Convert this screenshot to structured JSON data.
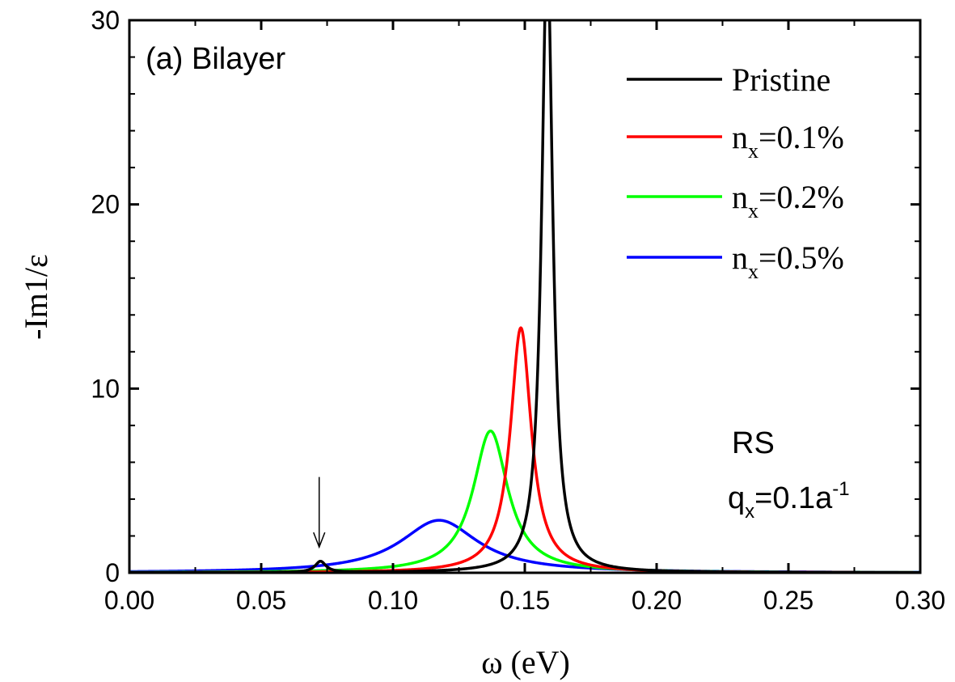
{
  "chart_data": {
    "type": "line",
    "xlabel": "ω (eV)",
    "ylabel": "-Im1/ε",
    "xlim": [
      0,
      0.3
    ],
    "ylim": [
      0,
      30
    ],
    "x_ticks": [
      "0.00",
      "0.05",
      "0.10",
      "0.15",
      "0.20",
      "0.25",
      "0.30"
    ],
    "y_ticks": [
      "0",
      "10",
      "20",
      "30"
    ],
    "grid": false,
    "legend_position": "top-right",
    "panel_label": "(a) Bilayer",
    "annotation": {
      "line1": "RS",
      "line2_main": "q",
      "line2_sub": "x",
      "line2_rest": "=0.1a",
      "line2_sup": "-1"
    },
    "arrow_marker": {
      "x": 0.072,
      "y_from": 5.2,
      "y_to": 1.4
    },
    "series": [
      {
        "name": "Pristine",
        "legend_main": "Pristine",
        "legend_sub": "",
        "legend_rest": "",
        "color": "#000000",
        "peaks": [
          {
            "x0": 0.1585,
            "amp": 34.0,
            "width": 0.0025
          },
          {
            "x0": 0.0725,
            "amp": 0.6,
            "width": 0.0025
          }
        ]
      },
      {
        "name": "nx=0.1%",
        "legend_main": "n",
        "legend_sub": "x",
        "legend_rest": "=0.1%",
        "color": "#ff0000",
        "peaks": [
          {
            "x0": 0.1485,
            "amp": 13.3,
            "width": 0.0048
          }
        ]
      },
      {
        "name": "nx=0.2%",
        "legend_main": "n",
        "legend_sub": "x",
        "legend_rest": "=0.2%",
        "color": "#00ff00",
        "peaks": [
          {
            "x0": 0.137,
            "amp": 7.7,
            "width": 0.008
          }
        ]
      },
      {
        "name": "nx=0.5%",
        "legend_main": "n",
        "legend_sub": "x",
        "legend_rest": "=0.5%",
        "color": "#0000ff",
        "peaks": [
          {
            "x0": 0.1175,
            "amp": 2.85,
            "width": 0.018
          }
        ]
      }
    ]
  }
}
